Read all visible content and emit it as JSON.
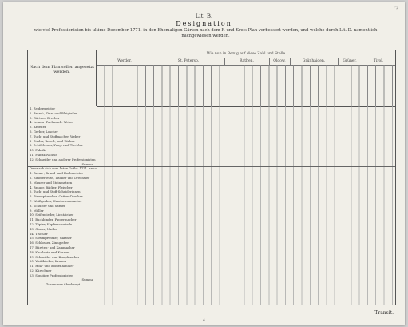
{
  "doc": {
    "corner": "!?",
    "lit": "Lit. B.",
    "title": "Designation",
    "description": "wie viel Professionisten bis ultimo December 1771. in den Ehemaligen Gärten nach dem F. und Kreis-Plan verbessert werden, und welche durch Lit. D. namentlich nachgewiesen werden.",
    "header_line": "Wie nun in Bezug auf diese Zahl und Stelle",
    "first_col_header": "Nach dem Plan sollen angesetzt werden.",
    "groups": [
      "Werder.",
      "St. Petersb.",
      "Rathen.",
      "Oldow.",
      "Grünhaiden.",
      "Grüner.",
      "Tirol."
    ],
    "footer": "Transit.",
    "page_number": "4"
  },
  "rows_top": [
    "1. Zeidermeister",
    "2. Brand-, Zinn- und Bleigießer",
    "3. Gürtner, Brecher",
    "4. Leinen- Tuchmach. Weber",
    "5. Arbeiter",
    "6. Gerber, Loscher",
    "7. Tuch- und Stoffmacher, Weber",
    "8. Sieder, Brand-, und Färber",
    "9. Schiff-bauer, Krug- und Tischler",
    "10. Fabrik",
    "11. Fabrik Nadeln",
    "12. Schneider und anderer Professionisten"
  ],
  "sum_label": "Summa",
  "mid_caption": "Demnach sich vom 1sten Octbr. 1771. annoch",
  "rows_bottom": [
    "1. Brenn-, Brand- und Kochmeister",
    "2. Zimmerleute, Tischer und Drechsler",
    "3. Maurer und Steinmetzen",
    "4. Brauer, Bäcker, Fleischer",
    "5. Tuch- und Stoff-Scheiderinnen",
    "6. Strumpf-wirker, Cattun-Drucker",
    "7. Weißgerber, Handschuhmacher",
    "8. Schuster und Sattler",
    "9. Müller",
    "10. Seifensieder, Lichtzieher",
    "11. Buchbinder, Papiermacher",
    "12. Töpfer, Kupferschmiede",
    "13. Glaser, Nadler",
    "14. Tischler",
    "15. Strumpfwirker, Gärtner",
    "16. Schlosser, Zinngießer",
    "17. Bürsten- und Kammacher",
    "18. Kaufleute und Kramer",
    "19. Schneider und Knopfmacher",
    "20. Weißbäcker, Kramer",
    "21. Holz- und Kohlenhändler",
    "22. Kürschner",
    "23. Sonstige Professionisten"
  ],
  "totals_label": "Summa",
  "grand_label": "Zusammen überhaupt"
}
